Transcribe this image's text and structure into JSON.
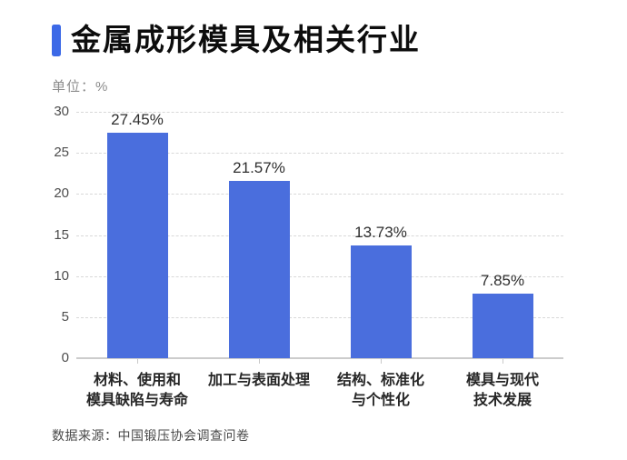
{
  "header": {
    "title": "金属成形模具及相关行业",
    "unit_label": "单位：%"
  },
  "footer": {
    "source": "数据来源：中国锻压协会调查问卷"
  },
  "colors": {
    "bar": "#4a6edd",
    "accent_bar": "#3c69e7",
    "grid_line": "#d8d8d8",
    "axis_line": "#cccccc"
  },
  "chart_data": {
    "type": "bar",
    "title": "金属成形模具及相关行业",
    "unit": "%",
    "categories": [
      "材料、使用和模具缺陷与寿命",
      "加工与表面处理",
      "结构、标准化与个性化",
      "模具与现代技术发展"
    ],
    "category_lines": [
      [
        "材料、使用和",
        "模具缺陷与寿命"
      ],
      [
        "加工与表面处理"
      ],
      [
        "结构、标准化",
        "与个性化"
      ],
      [
        "模具与现代",
        "技术发展"
      ]
    ],
    "values": [
      27.45,
      21.57,
      13.73,
      7.85
    ],
    "data_labels": [
      "27.45%",
      "21.57%",
      "13.73%",
      "7.85%"
    ],
    "ylim": [
      0,
      30
    ],
    "yticks": [
      0,
      5,
      10,
      15,
      20,
      25,
      30
    ],
    "grid": "horizontal-dashed",
    "legend": "none",
    "source": "数据来源：中国锻压协会调查问卷"
  }
}
